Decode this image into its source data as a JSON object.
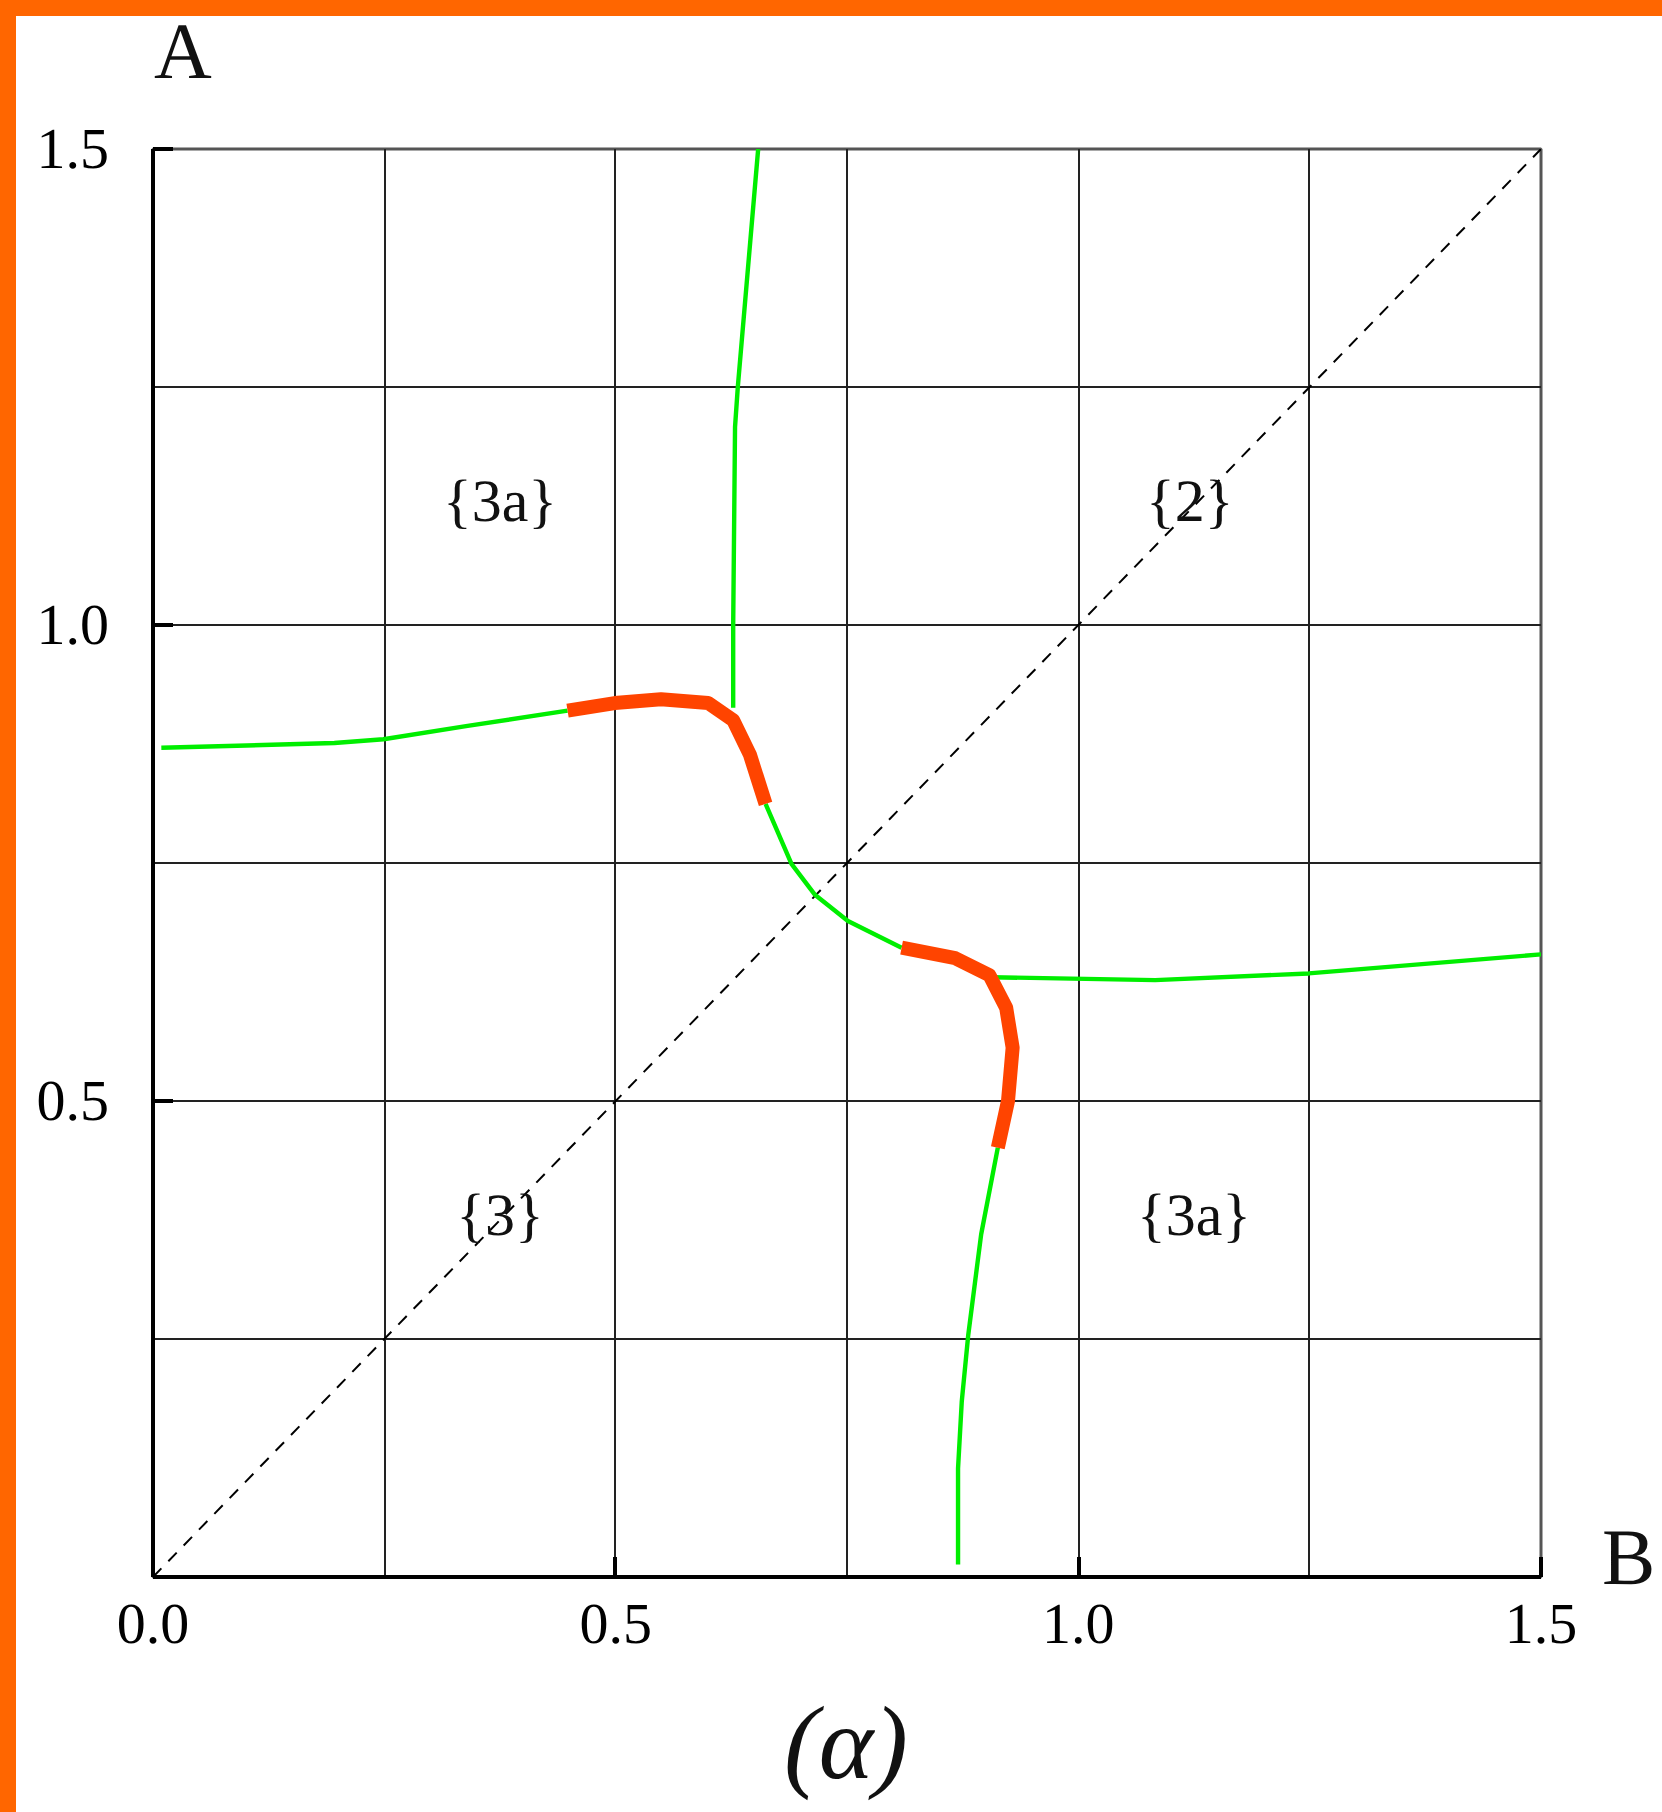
{
  "chart_data": {
    "type": "line",
    "title": "(α)",
    "xlabel": "B",
    "ylabel": "A",
    "xlim": [
      0,
      1.5
    ],
    "ylim": [
      0,
      1.5
    ],
    "xticks": [
      {
        "value": 0,
        "label": "0.0"
      },
      {
        "value": 0.25,
        "label": null
      },
      {
        "value": 0.5,
        "label": "0.5"
      },
      {
        "value": 0.75,
        "label": null
      },
      {
        "value": 1,
        "label": "1.0"
      },
      {
        "value": 1.25,
        "label": null
      },
      {
        "value": 1.5,
        "label": "1.5"
      }
    ],
    "yticks": [
      {
        "value": 0,
        "label": null
      },
      {
        "value": 0.25,
        "label": null
      },
      {
        "value": 0.5,
        "label": "0.5"
      },
      {
        "value": 0.75,
        "label": null
      },
      {
        "value": 1,
        "label": "1.0"
      },
      {
        "value": 1.25,
        "label": null
      },
      {
        "value": 1.5,
        "label": "1.5"
      }
    ],
    "grid": true,
    "line_style": "solid",
    "annotations": [
      "{3a}",
      "{2}",
      "{3}",
      "{3a}"
    ],
    "series": [
      {
        "color": "#000000",
        "line_style": "dashed",
        "x": [
          0,
          1.5
        ],
        "values": [
          0,
          1.5
        ]
      },
      {
        "color": "#00ee00",
        "x": [
          0.009,
          0.196,
          0.249,
          0.34,
          0.448
        ],
        "values": [
          0.871,
          0.876,
          0.88,
          0.894,
          0.91
        ]
      },
      {
        "color": "#00ee00",
        "x": [
          0.654,
          0.632,
          0.629,
          0.627,
          0.627
        ],
        "values": [
          1.5,
          1.25,
          1.208,
          1.0,
          0.913
        ]
      },
      {
        "color": "#00ee00",
        "x": [
          0.662,
          0.69,
          0.715,
          0.751,
          0.809
        ],
        "values": [
          0.812,
          0.749,
          0.717,
          0.689,
          0.661
        ]
      },
      {
        "color": "#00ee00",
        "x": [
          0.906,
          1.083,
          1.249,
          1.5
        ],
        "values": [
          0.63,
          0.627,
          0.634,
          0.654
        ]
      },
      {
        "color": "#00ee00",
        "x": [
          0.913,
          0.895,
          0.881,
          0.874,
          0.87,
          0.87
        ],
        "values": [
          0.451,
          0.36,
          0.254,
          0.184,
          0.114,
          0.013
        ]
      },
      {
        "color": "#ff4400",
        "x": [
          0.448,
          0.499,
          0.549,
          0.6,
          0.627,
          0.645,
          0.662
        ],
        "values": [
          0.91,
          0.918,
          0.922,
          0.918,
          0.9,
          0.864,
          0.812
        ]
      },
      {
        "color": "#ff4400",
        "x": [
          0.809,
          0.867,
          0.904,
          0.922,
          0.929,
          0.924,
          0.913
        ],
        "values": [
          0.661,
          0.65,
          0.632,
          0.598,
          0.556,
          0.5,
          0.451
        ]
      }
    ]
  }
}
